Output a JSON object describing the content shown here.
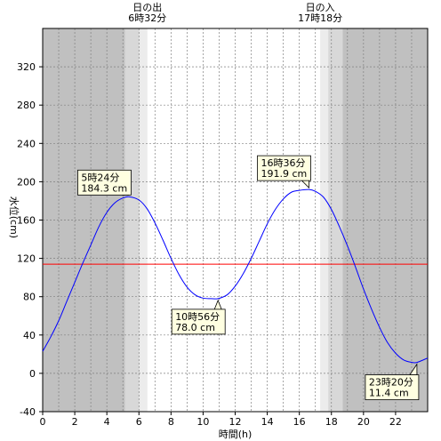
{
  "chart_data": {
    "type": "line",
    "xlabel": "時間(h)",
    "ylabel": "水位(cm)",
    "xlim": [
      0,
      24
    ],
    "ylim": [
      -40,
      360
    ],
    "x_ticks": [
      0,
      2,
      4,
      6,
      8,
      10,
      12,
      14,
      16,
      18,
      20,
      22
    ],
    "y_ticks": [
      -40,
      0,
      40,
      80,
      120,
      160,
      200,
      240,
      280,
      320
    ],
    "grid": true,
    "sunrise": {
      "label": "日の出",
      "time": "6時32分",
      "hour": 6.53
    },
    "sunset": {
      "label": "日の入",
      "time": "17時18分",
      "hour": 17.3
    },
    "reference_line": {
      "value": 114,
      "color": "#ff0000"
    },
    "series": [
      {
        "color": "#0000ff",
        "x": [
          0,
          0.5,
          1,
          1.5,
          2,
          2.5,
          3,
          3.5,
          4,
          4.5,
          5,
          5.4,
          6,
          6.5,
          7,
          7.5,
          8,
          8.5,
          9,
          9.5,
          10,
          10.5,
          10.93,
          11.5,
          12,
          12.5,
          13,
          13.5,
          14,
          14.5,
          15,
          15.5,
          16,
          16.6,
          17,
          17.5,
          18,
          18.5,
          19,
          19.5,
          20,
          20.5,
          21,
          21.5,
          22,
          22.5,
          23,
          23.33,
          24
        ],
        "values": [
          23,
          38,
          55,
          75,
          95,
          115,
          134,
          153,
          168,
          178,
          183,
          184.3,
          181,
          172,
          157,
          139,
          120,
          103,
          90,
          82,
          78.5,
          78,
          78,
          82,
          91,
          104,
          120,
          138,
          156,
          171,
          182,
          189,
          191,
          191.9,
          190,
          184,
          171,
          153,
          133,
          111,
          88,
          67,
          48,
          32,
          21,
          14,
          11.5,
          11.4,
          16
        ]
      }
    ],
    "extrema": [
      {
        "time": "5時24分",
        "value": "184.3 cm",
        "hour": 5.4,
        "level": 184.3,
        "kind": "high"
      },
      {
        "time": "10時56分",
        "value": "78.0 cm",
        "hour": 10.93,
        "level": 78.0,
        "kind": "low"
      },
      {
        "time": "16時36分",
        "value": "191.9 cm",
        "hour": 16.6,
        "level": 191.9,
        "kind": "high"
      },
      {
        "time": "23時20分",
        "value": "11.4 cm",
        "hour": 23.33,
        "level": 11.4,
        "kind": "low"
      }
    ]
  }
}
